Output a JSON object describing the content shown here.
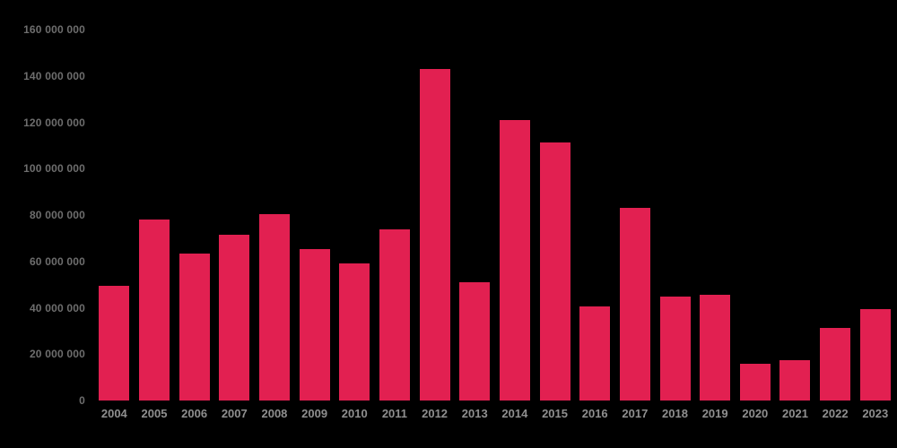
{
  "chart_data": {
    "type": "bar",
    "title": "",
    "xlabel": "",
    "ylabel": "",
    "categories": [
      "2004",
      "2005",
      "2006",
      "2007",
      "2008",
      "2009",
      "2010",
      "2011",
      "2012",
      "2013",
      "2014",
      "2015",
      "2016",
      "2017",
      "2018",
      "2019",
      "2020",
      "2021",
      "2022",
      "2023"
    ],
    "values": [
      49500000,
      78000000,
      63500000,
      71500000,
      80500000,
      65500000,
      59000000,
      74000000,
      143000000,
      51000000,
      121000000,
      111500000,
      40500000,
      83000000,
      45000000,
      45700000,
      16000000,
      17500000,
      31500000,
      39500000
    ],
    "ylim": [
      0,
      160000000
    ],
    "ytick_step": 20000000,
    "yticks": [
      {
        "value": 0,
        "label": "0"
      },
      {
        "value": 20000000,
        "label": "20 000 000"
      },
      {
        "value": 40000000,
        "label": "40 000 000"
      },
      {
        "value": 60000000,
        "label": "60 000 000"
      },
      {
        "value": 80000000,
        "label": "80 000 000"
      },
      {
        "value": 100000000,
        "label": "100 000 000"
      },
      {
        "value": 120000000,
        "label": "120 000 000"
      },
      {
        "value": 140000000,
        "label": "140 000 000"
      },
      {
        "value": 160000000,
        "label": "160 000 000"
      }
    ],
    "grid": false,
    "legend_position": "none",
    "colors": {
      "bar": "#e22051",
      "background": "#000000",
      "y_tick_label": "#6e6e6e",
      "x_tick_label": "#8f8f8f"
    }
  }
}
